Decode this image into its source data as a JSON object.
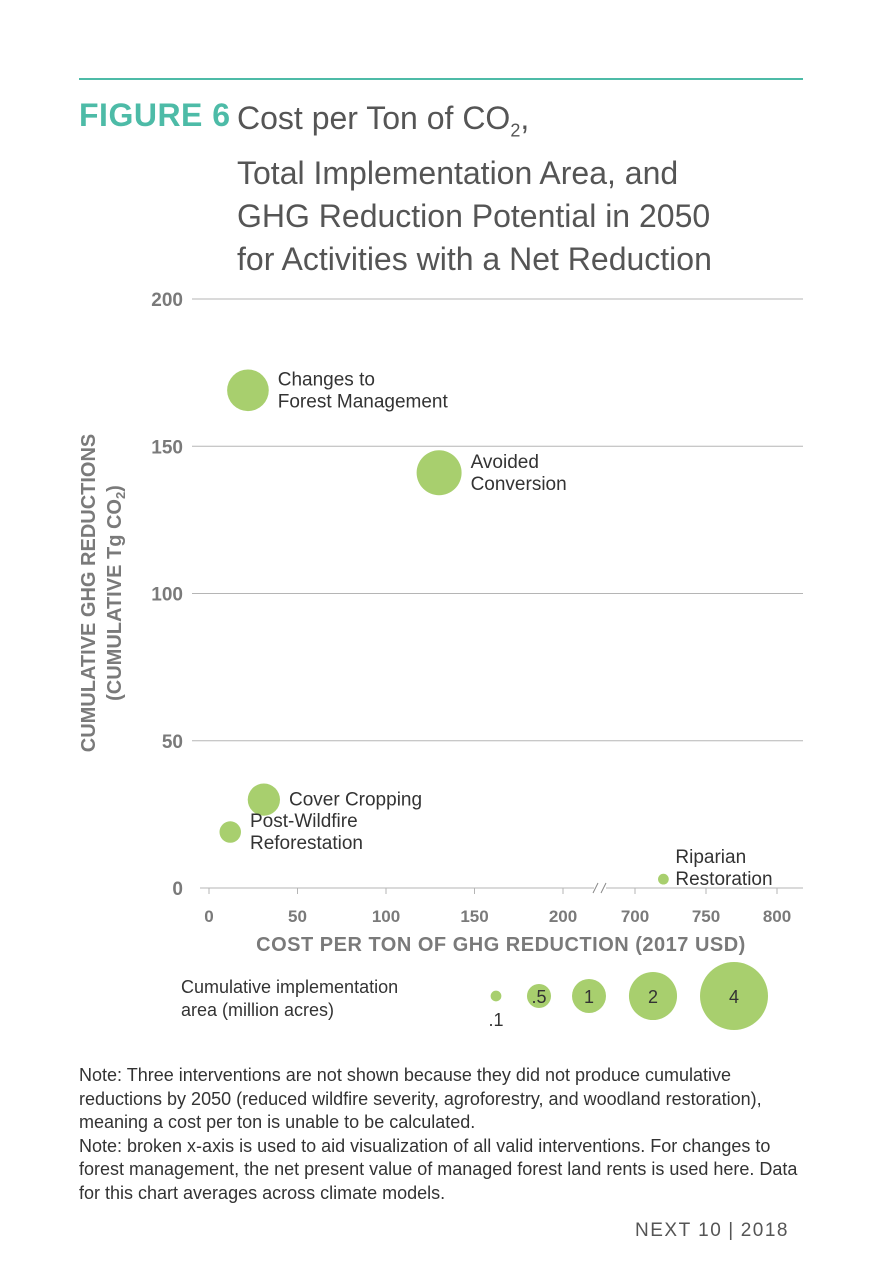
{
  "header": {
    "figure_label": "FIGURE 6",
    "title_line1": "Cost per Ton of CO",
    "title_line1_sub": "2",
    "title_line1_end": ",",
    "title_line2": "Total Implementation Area, and",
    "title_line3": "GHG Reduction Potential in 2050",
    "title_line4": "for Activities with a Net Reduction"
  },
  "chart_data": {
    "type": "scatter",
    "subtype": "bubble",
    "xlabel": "COST PER TON OF GHG REDUCTION (2017 USD)",
    "ylabel_line1": "CUMULATIVE GHG REDUCTIONS",
    "ylabel_line2": "(CUMULATIVE Tg CO",
    "ylabel_line2_sub": "2",
    "ylabel_line2_end": ")",
    "ylim": [
      0,
      200
    ],
    "y_ticks": [
      "0",
      "50",
      "100",
      "150",
      "200"
    ],
    "x_axis_broken": true,
    "x_segment1": {
      "range": [
        0,
        200
      ],
      "ticks": [
        "0",
        "50",
        "100",
        "150",
        "200"
      ]
    },
    "x_segment2": {
      "range": [
        700,
        800
      ],
      "ticks": [
        "700",
        "750",
        "800"
      ]
    },
    "grid": true,
    "color": "#a8cf6e",
    "points": [
      {
        "label_lines": [
          "Changes to",
          "Forest Management"
        ],
        "x": 22,
        "y": 169,
        "area": 1.5
      },
      {
        "label_lines": [
          "Avoided",
          "Conversion"
        ],
        "x": 130,
        "y": 141,
        "area": 1.75
      },
      {
        "label_lines": [
          "Cover Cropping"
        ],
        "x": 31,
        "y": 30,
        "area": 0.9
      },
      {
        "label_lines": [
          "Post-Wildfire",
          "Reforestation"
        ],
        "x": 12,
        "y": 19,
        "area": 0.4
      },
      {
        "label_lines": [
          "Riparian",
          "Restoration"
        ],
        "x": 720,
        "y": 3,
        "area": 0.1
      }
    ]
  },
  "legend": {
    "title_line1": "Cumulative implementation",
    "title_line2": "area (million acres)",
    "items": [
      {
        "label": ".1",
        "value": 0.1
      },
      {
        "label": ".5",
        "value": 0.5
      },
      {
        "label": "1",
        "value": 1
      },
      {
        "label": "2",
        "value": 2
      },
      {
        "label": "4",
        "value": 4
      }
    ]
  },
  "note": {
    "line1": "Note: Three interventions are not shown because they did not produce cumulative reductions by 2050 (reduced wildfire severity, agroforestry, and woodland restoration), meaning a cost per ton is unable to be calculated.",
    "line2": "Note: broken x-axis is used to aid visualization of all valid interventions. For changes to forest management, the net present value of managed forest land rents is used here. Data for this chart averages across climate models."
  },
  "footer": {
    "publisher": "NEXT 10",
    "separator": "|",
    "year": "2018"
  }
}
